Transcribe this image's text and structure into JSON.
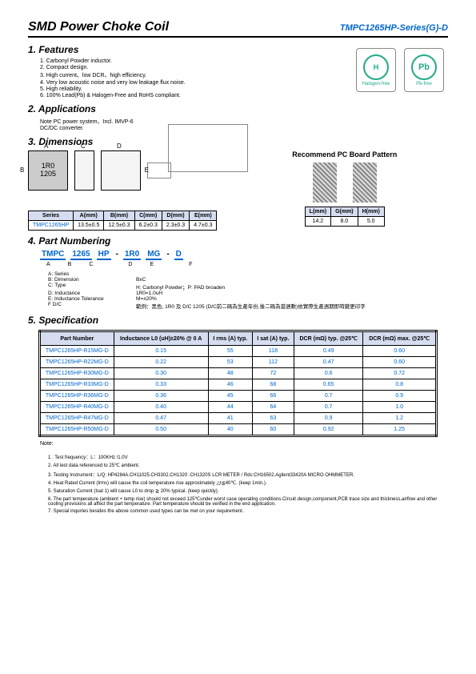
{
  "header": {
    "title": "SMD Power Choke Coil",
    "series": "TMPC1265HP-Series(G)-D"
  },
  "sections": {
    "features": "1. Features",
    "applications": "2. Applications",
    "dimensions": "3. Dimensions",
    "partNumbering": "4. Part Numbering",
    "specification": "5. Specification"
  },
  "features": [
    "1. Carbonyl Powder inductor.",
    "2. Compact design.",
    "3. High current、low DCR、high efficiency.",
    "4. Very low acoustic noise and very low leakage flux noise.",
    "5. High reliability.",
    "6. 100% Lead(Pb) & Halogen-Free and RoHS compliant."
  ],
  "badges": {
    "halogen": "Halogen-free",
    "pbfree": "Pb-free"
  },
  "applications": "Note PC power system、Incl. IMVP-6 DC/DC converter.",
  "chip": {
    "line1": "1R0",
    "line2": "1205"
  },
  "dimTable": {
    "headers": [
      "Series",
      "A(mm)",
      "B(mm)",
      "C(mm)",
      "D(mm)",
      "E(mm)"
    ],
    "row": [
      "TMPC1265HP",
      "13.5±0.5",
      "12.5±0.3",
      "6.2±0.3",
      "2.3±0.3",
      "4.7±0.3"
    ]
  },
  "pcb": {
    "title": "Recommend PC Board Pattern",
    "headers": [
      "L(mm)",
      "G(mm)",
      "H(mm)"
    ],
    "row": [
      "14.2",
      "8.0",
      "5.0"
    ]
  },
  "partNum": {
    "parts": [
      "TMPC",
      "1265",
      "HP",
      "-",
      "1R0",
      "MG",
      "-",
      "D"
    ],
    "labels": [
      "A",
      "B",
      "C",
      "",
      "D",
      "E",
      "",
      "F"
    ],
    "legend": [
      [
        "A: Series",
        ""
      ],
      [
        "B: Dimension",
        "BxC"
      ],
      [
        "C: Type",
        "H: Carbonyl Powder；P: PAD broaden"
      ],
      [
        "D: Inductance",
        "1R0=1.0uH"
      ],
      [
        "E: Inductance Tolerance",
        "M=±20%"
      ],
      [
        "F D/C",
        "範例：黑色, 1R0 及 D/C 1205 (D/C前二碼為生產年份,後二碼為當週數)依實際生產週期即時變更印字"
      ]
    ]
  },
  "specTable": {
    "headers": [
      "Part Number",
      "Inductance L0 (uH)±20% @ 0 A",
      "I rms (A) typ.",
      "I sat (A) typ.",
      "DCR (mΩ) typ. @25℃",
      "DCR (mΩ) max. @25℃"
    ],
    "rows": [
      [
        "TMPC1265HP-R15MG-D",
        "0.15",
        "55",
        "118",
        "0.49",
        "0.60"
      ],
      [
        "TMPC1265HP-R22MG-D",
        "0.22",
        "53",
        "112",
        "0.47",
        "0.60"
      ],
      [
        "TMPC1265HP-R30MG-D",
        "0.30",
        "48",
        "72",
        "0.6",
        "0.72"
      ],
      [
        "TMPC1265HP-R33MG-D",
        "0.33",
        "46",
        "68",
        "0.65",
        "0.8"
      ],
      [
        "TMPC1265HP-R36MG-D",
        "0.36",
        "45",
        "66",
        "0.7",
        "0.9"
      ],
      [
        "TMPC1265HP-R40MG-D",
        "0.40",
        "44",
        "64",
        "0.7",
        "1.0"
      ],
      [
        "TMPC1265HP-R47MG-D",
        "0.47",
        "41",
        "63",
        "0.9",
        "1.2"
      ],
      [
        "TMPC1265HP-R50MG-D",
        "0.50",
        "40",
        "60",
        "0.92",
        "1.25"
      ]
    ]
  },
  "noteLabel": "Note:",
  "notes": [
    "1 . Test frequency：L：100KHz /1.0V",
    "2. All test data referenced to 25℃ ambient.",
    "3. Testing Instrument：L/Q: HP4284A.CH11025.CH3302.CH1320 .CH1320S LCR METER / Rdc:CH16502.Agilent33420A MICRO OHMMETER.",
    "4. Heat Rated Current (Irms) will cause the coil temperature rise approximately △t≦40℃. (keep 1min.).",
    "5. Saturation Current (Isat 1) will cause L0 to drop ≧ 20% typical. (keep quickly).",
    "6. The part temperature (ambient + temp rise) should not exceed 125℃under worst case operating conditions.Circuit design,component,PCB trace size and thickness,airflow and other cooling provisions all affect the part temperature. Part temperature should be verified in the end application.",
    "7. Special inquiries besides the above common used types can be met on your requirement."
  ]
}
